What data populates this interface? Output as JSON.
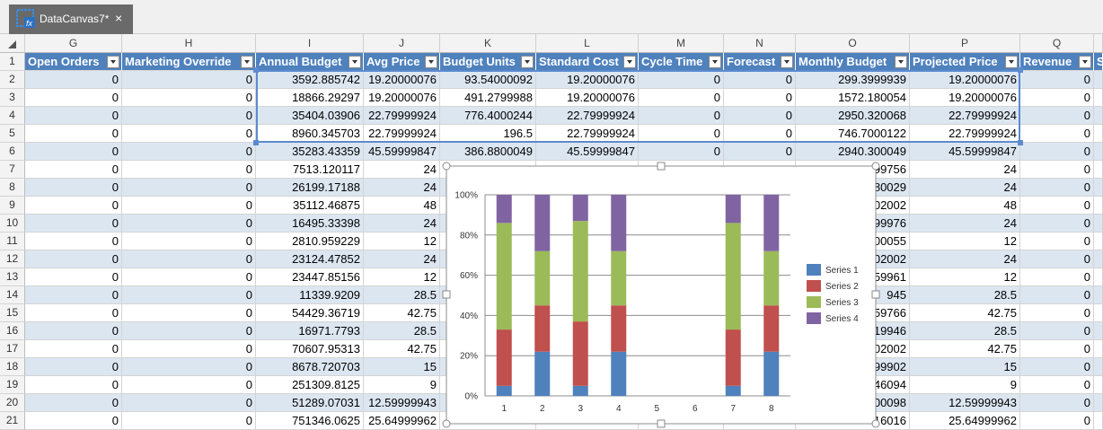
{
  "tab": {
    "title": "DataCanvas7*",
    "close": "×"
  },
  "sheet": {
    "columns": [
      "G",
      "H",
      "I",
      "J",
      "K",
      "L",
      "M",
      "N",
      "O",
      "P",
      "Q"
    ],
    "header_row": {
      "number": "1",
      "cells": {
        "G": "Open Orders",
        "H": "Marketing Override",
        "I": "Annual Budget",
        "J": "Avg Price",
        "K": "Budget Units",
        "L": "Standard Cost",
        "M": "Cycle Time",
        "N": "Forecast",
        "O": "Monthly Budget",
        "P": "Projected Price",
        "Q": "Revenue",
        "R": "S"
      }
    },
    "rows": [
      {
        "number": "2",
        "cells": {
          "G": "0",
          "H": "0",
          "I": "3592.885742",
          "J": "19.20000076",
          "K": "93.54000092",
          "L": "19.20000076",
          "M": "0",
          "N": "0",
          "O": "299.3999939",
          "P": "19.20000076",
          "Q": "0"
        }
      },
      {
        "number": "3",
        "cells": {
          "G": "0",
          "H": "0",
          "I": "18866.29297",
          "J": "19.20000076",
          "K": "491.2799988",
          "L": "19.20000076",
          "M": "0",
          "N": "0",
          "O": "1572.180054",
          "P": "19.20000076",
          "Q": "0"
        }
      },
      {
        "number": "4",
        "cells": {
          "G": "0",
          "H": "0",
          "I": "35404.03906",
          "J": "22.79999924",
          "K": "776.4000244",
          "L": "22.79999924",
          "M": "0",
          "N": "0",
          "O": "2950.320068",
          "P": "22.79999924",
          "Q": "0"
        }
      },
      {
        "number": "5",
        "cells": {
          "G": "0",
          "H": "0",
          "I": "8960.345703",
          "J": "22.79999924",
          "K": "196.5",
          "L": "22.79999924",
          "M": "0",
          "N": "0",
          "O": "746.7000122",
          "P": "22.79999924",
          "Q": "0"
        }
      },
      {
        "number": "6",
        "cells": {
          "G": "0",
          "H": "0",
          "I": "35283.43359",
          "J": "45.59999847",
          "K": "386.8800049",
          "L": "45.59999847",
          "M": "0",
          "N": "0",
          "O": "2940.300049",
          "P": "45.59999847",
          "Q": "0"
        }
      },
      {
        "number": "7",
        "cells": {
          "G": "0",
          "H": "0",
          "I": "7513.120117",
          "J": "24",
          "O": "99756",
          "P": "24",
          "Q": "0"
        }
      },
      {
        "number": "8",
        "cells": {
          "G": "0",
          "H": "0",
          "I": "26199.17188",
          "J": "24",
          "O": "80029",
          "P": "24",
          "Q": "0"
        }
      },
      {
        "number": "9",
        "cells": {
          "G": "0",
          "H": "0",
          "I": "35112.46875",
          "J": "48",
          "O": "02002",
          "P": "48",
          "Q": "0"
        }
      },
      {
        "number": "10",
        "cells": {
          "G": "0",
          "H": "0",
          "I": "16495.33398",
          "J": "24",
          "O": "99976",
          "P": "24",
          "Q": "0"
        }
      },
      {
        "number": "11",
        "cells": {
          "G": "0",
          "H": "0",
          "I": "2810.959229",
          "J": "12",
          "O": "00055",
          "P": "12",
          "Q": "0"
        }
      },
      {
        "number": "12",
        "cells": {
          "G": "0",
          "H": "0",
          "I": "23124.47852",
          "J": "24",
          "O": "02002",
          "P": "24",
          "Q": "0"
        }
      },
      {
        "number": "13",
        "cells": {
          "G": "0",
          "H": "0",
          "I": "23447.85156",
          "J": "12",
          "O": "59961",
          "P": "12",
          "Q": "0"
        }
      },
      {
        "number": "14",
        "cells": {
          "G": "0",
          "H": "0",
          "I": "11339.9209",
          "J": "28.5",
          "O": "945",
          "P": "28.5",
          "Q": "0"
        }
      },
      {
        "number": "15",
        "cells": {
          "G": "0",
          "H": "0",
          "I": "54429.36719",
          "J": "42.75",
          "O": "59766",
          "P": "42.75",
          "Q": "0"
        }
      },
      {
        "number": "16",
        "cells": {
          "G": "0",
          "H": "0",
          "I": "16971.7793",
          "J": "28.5",
          "O": "19946",
          "P": "28.5",
          "Q": "0"
        }
      },
      {
        "number": "17",
        "cells": {
          "G": "0",
          "H": "0",
          "I": "70607.95313",
          "J": "42.75",
          "O": "02002",
          "P": "42.75",
          "Q": "0"
        }
      },
      {
        "number": "18",
        "cells": {
          "G": "0",
          "H": "0",
          "I": "8678.720703",
          "J": "15",
          "O": "99902",
          "P": "15",
          "Q": "0"
        }
      },
      {
        "number": "19",
        "cells": {
          "G": "0",
          "H": "0",
          "I": "251309.8125",
          "J": "9",
          "O": "46094",
          "P": "9",
          "Q": "0"
        }
      },
      {
        "number": "20",
        "cells": {
          "G": "0",
          "H": "0",
          "I": "51289.07031",
          "J": "12.59999943",
          "O": "00098",
          "P": "12.59999943",
          "Q": "0"
        }
      },
      {
        "number": "21",
        "cells": {
          "G": "0",
          "H": "0",
          "I": "751346.0625",
          "J": "25.64999962",
          "O": "16016",
          "P": "25.64999962",
          "Q": "0"
        }
      }
    ]
  },
  "chart_data": {
    "type": "bar",
    "stacked": "percent",
    "categories": [
      "1",
      "2",
      "3",
      "4",
      "5",
      "6",
      "7",
      "8"
    ],
    "series": [
      {
        "name": "Series 1",
        "color": "#4f81bd",
        "values": [
          5,
          22,
          5,
          22,
          null,
          null,
          5,
          22
        ]
      },
      {
        "name": "Series 2",
        "color": "#c0504d",
        "values": [
          28,
          23,
          32,
          23,
          null,
          null,
          28,
          23
        ]
      },
      {
        "name": "Series 3",
        "color": "#9bbb59",
        "values": [
          53,
          27,
          50,
          27,
          null,
          null,
          53,
          27
        ]
      },
      {
        "name": "Series 4",
        "color": "#8064a2",
        "values": [
          14,
          28,
          13,
          28,
          null,
          null,
          14,
          28
        ]
      }
    ],
    "ylim": [
      0,
      100
    ],
    "yticks": [
      {
        "value": 0,
        "label": "0%"
      },
      {
        "value": 20,
        "label": "20%"
      },
      {
        "value": 40,
        "label": "40%"
      },
      {
        "value": 60,
        "label": "60%"
      },
      {
        "value": 80,
        "label": "80%"
      },
      {
        "value": 100,
        "label": "100%"
      }
    ],
    "grid": true,
    "legend": "right"
  }
}
